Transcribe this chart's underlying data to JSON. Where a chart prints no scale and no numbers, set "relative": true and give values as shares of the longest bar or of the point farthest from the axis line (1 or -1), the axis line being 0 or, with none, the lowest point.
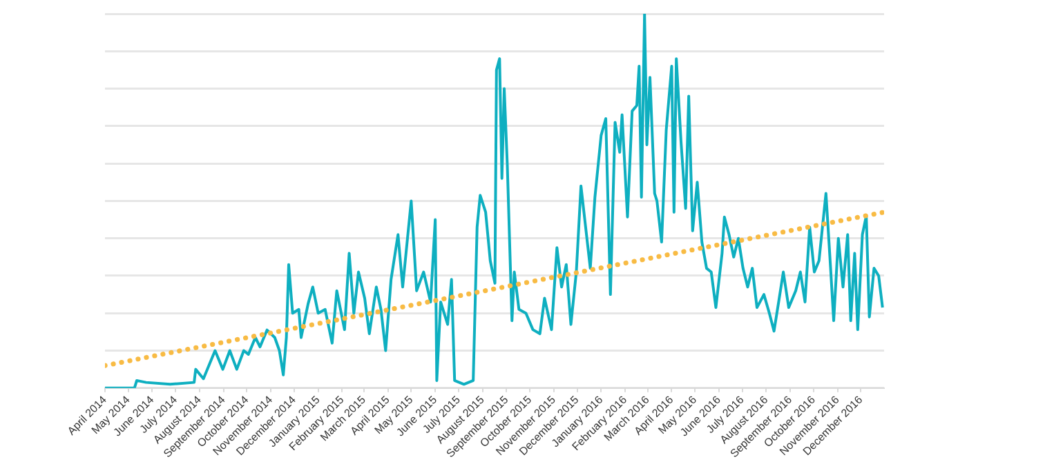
{
  "chart_data": {
    "type": "line",
    "relative": true,
    "grid": "y",
    "legend": false,
    "xlim": [
      "2014-04-01",
      "2016-12-31"
    ],
    "xticks": [
      {
        "value": "2014-04-01",
        "label": "April 2014"
      },
      {
        "value": "2014-05-01",
        "label": "May 2014"
      },
      {
        "value": "2014-06-01",
        "label": "June 2014"
      },
      {
        "value": "2014-07-01",
        "label": "July 2014"
      },
      {
        "value": "2014-08-01",
        "label": "August 2014"
      },
      {
        "value": "2014-09-01",
        "label": "September 2014"
      },
      {
        "value": "2014-10-01",
        "label": "October 2014"
      },
      {
        "value": "2014-11-01",
        "label": "November 2014"
      },
      {
        "value": "2014-12-01",
        "label": "December 2014"
      },
      {
        "value": "2015-01-01",
        "label": "January 2015"
      },
      {
        "value": "2015-02-01",
        "label": "February 2015"
      },
      {
        "value": "2015-03-01",
        "label": "March 2015"
      },
      {
        "value": "2015-04-01",
        "label": "April 2015"
      },
      {
        "value": "2015-05-01",
        "label": "May 2015"
      },
      {
        "value": "2015-06-01",
        "label": "June 2015"
      },
      {
        "value": "2015-07-01",
        "label": "July 2015"
      },
      {
        "value": "2015-08-01",
        "label": "August 2015"
      },
      {
        "value": "2015-09-01",
        "label": "September 2015"
      },
      {
        "value": "2015-10-01",
        "label": "October 2015"
      },
      {
        "value": "2015-11-01",
        "label": "November 2015"
      },
      {
        "value": "2015-12-01",
        "label": "December 2015"
      },
      {
        "value": "2016-01-01",
        "label": "January 2016"
      },
      {
        "value": "2016-02-01",
        "label": "February 2016"
      },
      {
        "value": "2016-03-01",
        "label": "March 2016"
      },
      {
        "value": "2016-04-01",
        "label": "April 2016"
      },
      {
        "value": "2016-05-01",
        "label": "May 2016"
      },
      {
        "value": "2016-06-01",
        "label": "June 2016"
      },
      {
        "value": "2016-07-01",
        "label": "July 2016"
      },
      {
        "value": "2016-08-01",
        "label": "August 2016"
      },
      {
        "value": "2016-09-01",
        "label": "September 2016"
      },
      {
        "value": "2016-10-01",
        "label": "October 2016"
      },
      {
        "value": "2016-11-01",
        "label": "November 2016"
      },
      {
        "value": "2016-12-01",
        "label": "December 2016"
      }
    ],
    "series": [
      {
        "color": "#0eafc0",
        "line_style": "solid",
        "x": [
          "2014-04-01",
          "2014-05-09",
          "2014-05-12",
          "2014-05-24",
          "2014-06-24",
          "2014-07-25",
          "2014-07-27",
          "2014-08-06",
          "2014-08-21",
          "2014-08-31",
          "2014-09-09",
          "2014-09-18",
          "2014-09-27",
          "2014-10-03",
          "2014-10-12",
          "2014-10-18",
          "2014-10-27",
          "2014-11-06",
          "2014-11-12",
          "2014-11-17",
          "2014-11-21",
          "2014-11-24",
          "2014-11-29",
          "2014-12-07",
          "2014-12-10",
          "2014-12-19",
          "2014-12-25",
          "2015-01-01",
          "2015-01-10",
          "2015-01-19",
          "2015-01-25",
          "2015-02-04",
          "2015-02-10",
          "2015-02-16",
          "2015-02-22",
          "2015-03-02",
          "2015-03-08",
          "2015-03-17",
          "2015-03-23",
          "2015-03-29",
          "2015-04-05",
          "2015-04-14",
          "2015-04-20",
          "2015-05-01",
          "2015-05-08",
          "2015-05-17",
          "2015-05-26",
          "2015-06-01",
          "2015-06-03",
          "2015-06-08",
          "2015-06-17",
          "2015-06-22",
          "2015-06-26",
          "2015-07-08",
          "2015-07-20",
          "2015-07-25",
          "2015-07-29",
          "2015-08-05",
          "2015-08-11",
          "2015-08-17",
          "2015-08-19",
          "2015-08-23",
          "2015-08-26",
          "2015-08-29",
          "2015-09-02",
          "2015-09-08",
          "2015-09-11",
          "2015-09-17",
          "2015-09-26",
          "2015-10-05",
          "2015-10-14",
          "2015-10-20",
          "2015-10-29",
          "2015-11-05",
          "2015-11-11",
          "2015-11-17",
          "2015-11-23",
          "2015-11-30",
          "2015-12-06",
          "2015-12-12",
          "2015-12-18",
          "2015-12-24",
          "2016-01-01",
          "2016-01-07",
          "2016-01-13",
          "2016-01-19",
          "2016-01-25",
          "2016-01-28",
          "2016-02-04",
          "2016-02-10",
          "2016-02-16",
          "2016-02-19",
          "2016-02-22",
          "2016-02-26",
          "2016-02-29",
          "2016-03-04",
          "2016-03-10",
          "2016-03-13",
          "2016-03-19",
          "2016-03-25",
          "2016-04-01",
          "2016-04-04",
          "2016-04-07",
          "2016-04-13",
          "2016-04-19",
          "2016-04-23",
          "2016-04-28",
          "2016-05-04",
          "2016-05-10",
          "2016-05-16",
          "2016-05-22",
          "2016-05-28",
          "2016-06-05",
          "2016-06-08",
          "2016-06-14",
          "2016-06-20",
          "2016-06-26",
          "2016-07-02",
          "2016-07-08",
          "2016-07-14",
          "2016-07-20",
          "2016-07-29",
          "2016-08-05",
          "2016-08-11",
          "2016-08-17",
          "2016-08-23",
          "2016-08-30",
          "2016-09-08",
          "2016-09-14",
          "2016-09-20",
          "2016-09-26",
          "2016-10-02",
          "2016-10-08",
          "2016-10-14",
          "2016-10-17",
          "2016-10-23",
          "2016-10-27",
          "2016-11-02",
          "2016-11-08",
          "2016-11-14",
          "2016-11-18",
          "2016-11-23",
          "2016-11-27",
          "2016-12-03",
          "2016-12-08",
          "2016-12-12",
          "2016-12-18",
          "2016-12-24",
          "2016-12-29"
        ],
        "values": [
          0,
          0,
          0.02,
          0.015,
          0.01,
          0.015,
          0.05,
          0.025,
          0.1,
          0.05,
          0.1,
          0.05,
          0.1,
          0.09,
          0.135,
          0.11,
          0.155,
          0.135,
          0.1,
          0.035,
          0.135,
          0.33,
          0.2,
          0.21,
          0.135,
          0.225,
          0.27,
          0.2,
          0.21,
          0.12,
          0.26,
          0.156,
          0.36,
          0.2,
          0.31,
          0.24,
          0.145,
          0.27,
          0.21,
          0.1,
          0.29,
          0.41,
          0.27,
          0.5,
          0.26,
          0.31,
          0.23,
          0.45,
          0.02,
          0.23,
          0.17,
          0.29,
          0.02,
          0.01,
          0.02,
          0.43,
          0.515,
          0.47,
          0.34,
          0.28,
          0.85,
          0.88,
          0.56,
          0.8,
          0.595,
          0.18,
          0.31,
          0.21,
          0.2,
          0.156,
          0.145,
          0.24,
          0.156,
          0.375,
          0.27,
          0.33,
          0.17,
          0.31,
          0.54,
          0.43,
          0.32,
          0.51,
          0.675,
          0.72,
          0.25,
          0.71,
          0.63,
          0.73,
          0.457,
          0.74,
          0.755,
          0.86,
          0.51,
          1,
          0.65,
          0.83,
          0.52,
          0.5,
          0.39,
          0.69,
          0.86,
          0.47,
          0.88,
          0.66,
          0.48,
          0.78,
          0.42,
          0.55,
          0.39,
          0.32,
          0.31,
          0.215,
          0.36,
          0.457,
          0.41,
          0.35,
          0.4,
          0.32,
          0.27,
          0.32,
          0.215,
          0.25,
          0.2,
          0.152,
          0.23,
          0.31,
          0.215,
          0.26,
          0.31,
          0.23,
          0.43,
          0.31,
          0.34,
          0.46,
          0.52,
          0.32,
          0.18,
          0.4,
          0.27,
          0.41,
          0.18,
          0.36,
          0.156,
          0.41,
          0.46,
          0.19,
          0.32,
          0.3,
          0.215
        ]
      },
      {
        "color": "#f8bb44",
        "line_style": "dotted",
        "x": [
          "2014-04-01",
          "2016-12-31"
        ],
        "values": [
          0.06,
          0.47
        ]
      }
    ]
  }
}
